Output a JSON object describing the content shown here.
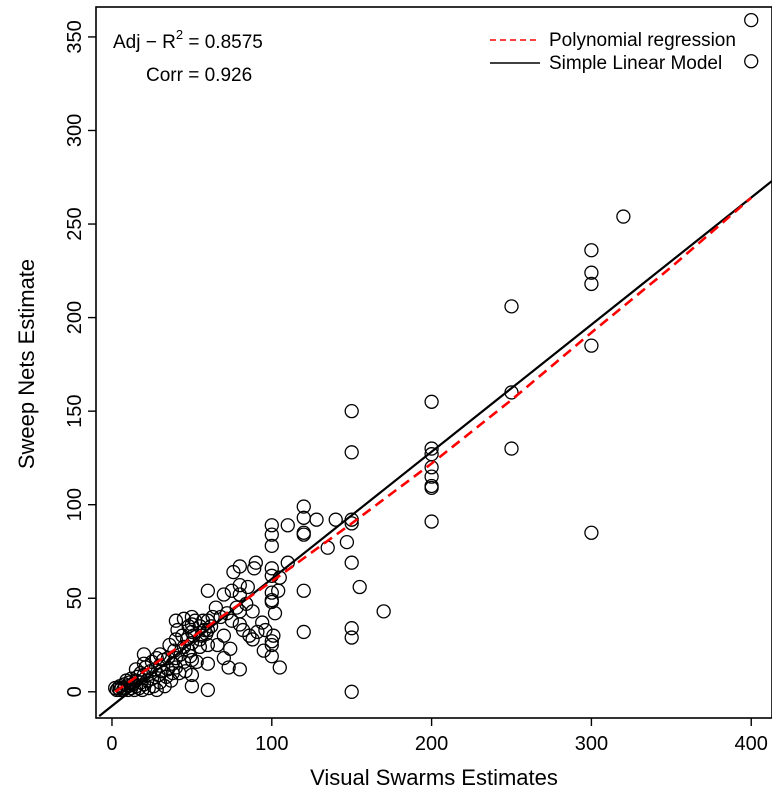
{
  "chart_data": {
    "type": "scatter",
    "xlabel": "Visual Swarms Estimates",
    "ylabel": "Sweep Nets Estimate",
    "xlim": [
      -10,
      413
    ],
    "ylim": [
      -14,
      366
    ],
    "x_ticks": [
      0,
      100,
      200,
      300,
      400
    ],
    "y_ticks": [
      0,
      50,
      100,
      150,
      200,
      250,
      300,
      350
    ],
    "grid": false,
    "legend_position": "top-right",
    "annotations": {
      "adj_r2_prefix": "Adj − R",
      "adj_r2_sup": "2",
      "adj_r2_value": " = 0.8575",
      "corr": "Corr = 0.926"
    },
    "series": [
      {
        "name": "Polynomial regression",
        "kind": "line",
        "color": "#ff0000",
        "dashed": true,
        "x": [
          2,
          50,
          100,
          150,
          200,
          250,
          300,
          350,
          400
        ],
        "y": [
          0,
          29,
          59,
          90,
          122,
          156,
          192,
          227,
          264
        ]
      },
      {
        "name": "Simple Linear Model",
        "kind": "line",
        "color": "#000000",
        "dashed": false,
        "x": [
          -8,
          413
        ],
        "y": [
          -13,
          273
        ]
      },
      {
        "name": "",
        "kind": "points",
        "color": "#000000",
        "points": [
          [
            2,
            2
          ],
          [
            3,
            1
          ],
          [
            4,
            2
          ],
          [
            5,
            1
          ],
          [
            5,
            3
          ],
          [
            6,
            2
          ],
          [
            7,
            1
          ],
          [
            8,
            4
          ],
          [
            8,
            2
          ],
          [
            9,
            6
          ],
          [
            10,
            3
          ],
          [
            10,
            1
          ],
          [
            11,
            5
          ],
          [
            12,
            2
          ],
          [
            12,
            7
          ],
          [
            13,
            4
          ],
          [
            14,
            1
          ],
          [
            15,
            6
          ],
          [
            15,
            3
          ],
          [
            15,
            12
          ],
          [
            16,
            8
          ],
          [
            17,
            2
          ],
          [
            18,
            10
          ],
          [
            18,
            5
          ],
          [
            19,
            1
          ],
          [
            20,
            15
          ],
          [
            20,
            9
          ],
          [
            20,
            4
          ],
          [
            20,
            20
          ],
          [
            21,
            13
          ],
          [
            22,
            6
          ],
          [
            23,
            2
          ],
          [
            24,
            11
          ],
          [
            25,
            16
          ],
          [
            25,
            7
          ],
          [
            26,
            3
          ],
          [
            27,
            12
          ],
          [
            28,
            18
          ],
          [
            28,
            1
          ],
          [
            29,
            9
          ],
          [
            30,
            14
          ],
          [
            30,
            5
          ],
          [
            30,
            20
          ],
          [
            31,
            11
          ],
          [
            32,
            17
          ],
          [
            33,
            3
          ],
          [
            34,
            8
          ],
          [
            35,
            12
          ],
          [
            35,
            18
          ],
          [
            36,
            25
          ],
          [
            37,
            6
          ],
          [
            38,
            15
          ],
          [
            38,
            10
          ],
          [
            39,
            22
          ],
          [
            40,
            28
          ],
          [
            40,
            18
          ],
          [
            40,
            13
          ],
          [
            40,
            38
          ],
          [
            41,
            33
          ],
          [
            42,
            10
          ],
          [
            43,
            20
          ],
          [
            44,
            30
          ],
          [
            45,
            24
          ],
          [
            45,
            16
          ],
          [
            45,
            39
          ],
          [
            46,
            11
          ],
          [
            47,
            28
          ],
          [
            48,
            35
          ],
          [
            48,
            22
          ],
          [
            49,
            19
          ],
          [
            50,
            40
          ],
          [
            50,
            32
          ],
          [
            50,
            26
          ],
          [
            50,
            17
          ],
          [
            50,
            9
          ],
          [
            50,
            3
          ],
          [
            50,
            36
          ],
          [
            51,
            30
          ],
          [
            52,
            38
          ],
          [
            53,
            16
          ],
          [
            55,
            35
          ],
          [
            55,
            24
          ],
          [
            55,
            28
          ],
          [
            56,
            30
          ],
          [
            57,
            38
          ],
          [
            58,
            33
          ],
          [
            59,
            31
          ],
          [
            60,
            54
          ],
          [
            60,
            38
          ],
          [
            60,
            33
          ],
          [
            60,
            25
          ],
          [
            60,
            15
          ],
          [
            60,
            1
          ],
          [
            62,
            35
          ],
          [
            63,
            40
          ],
          [
            65,
            45
          ],
          [
            66,
            25
          ],
          [
            68,
            40
          ],
          [
            70,
            18
          ],
          [
            70,
            30
          ],
          [
            70,
            52
          ],
          [
            72,
            42
          ],
          [
            73,
            13
          ],
          [
            74,
            23
          ],
          [
            75,
            38
          ],
          [
            75,
            54
          ],
          [
            76,
            64
          ],
          [
            78,
            45
          ],
          [
            80,
            67
          ],
          [
            80,
            57
          ],
          [
            80,
            52
          ],
          [
            80,
            36
          ],
          [
            80,
            12
          ],
          [
            80,
            43
          ],
          [
            82,
            33
          ],
          [
            84,
            47
          ],
          [
            85,
            56
          ],
          [
            86,
            30
          ],
          [
            88,
            28
          ],
          [
            88,
            43
          ],
          [
            89,
            66
          ],
          [
            90,
            69
          ],
          [
            91,
            32
          ],
          [
            94,
            37
          ],
          [
            95,
            22
          ],
          [
            96,
            33
          ],
          [
            100,
            89
          ],
          [
            100,
            84
          ],
          [
            100,
            78
          ],
          [
            100,
            66
          ],
          [
            100,
            62
          ],
          [
            100,
            53
          ],
          [
            100,
            49
          ],
          [
            100,
            48
          ],
          [
            100,
            27
          ],
          [
            100,
            19
          ],
          [
            100,
            25
          ],
          [
            101,
            30
          ],
          [
            102,
            42
          ],
          [
            104,
            54
          ],
          [
            105,
            61
          ],
          [
            105,
            13
          ],
          [
            110,
            89
          ],
          [
            110,
            69
          ],
          [
            120,
            99
          ],
          [
            120,
            93
          ],
          [
            120,
            85
          ],
          [
            120,
            84
          ],
          [
            120,
            54
          ],
          [
            120,
            32
          ],
          [
            128,
            92
          ],
          [
            135,
            77
          ],
          [
            140,
            92
          ],
          [
            147,
            80
          ],
          [
            150,
            150
          ],
          [
            150,
            128
          ],
          [
            150,
            92
          ],
          [
            150,
            90
          ],
          [
            150,
            69
          ],
          [
            150,
            34
          ],
          [
            150,
            29
          ],
          [
            150,
            0
          ],
          [
            155,
            56
          ],
          [
            170,
            43
          ],
          [
            200,
            155
          ],
          [
            200,
            130
          ],
          [
            200,
            127
          ],
          [
            200,
            120
          ],
          [
            200,
            115
          ],
          [
            200,
            110
          ],
          [
            200,
            109
          ],
          [
            200,
            91
          ],
          [
            250,
            206
          ],
          [
            250,
            160
          ],
          [
            250,
            130
          ],
          [
            300,
            236
          ],
          [
            300,
            224
          ],
          [
            300,
            218
          ],
          [
            300,
            185
          ],
          [
            300,
            85
          ],
          [
            320,
            254
          ],
          [
            400,
            359
          ],
          [
            400,
            337
          ]
        ]
      }
    ]
  }
}
